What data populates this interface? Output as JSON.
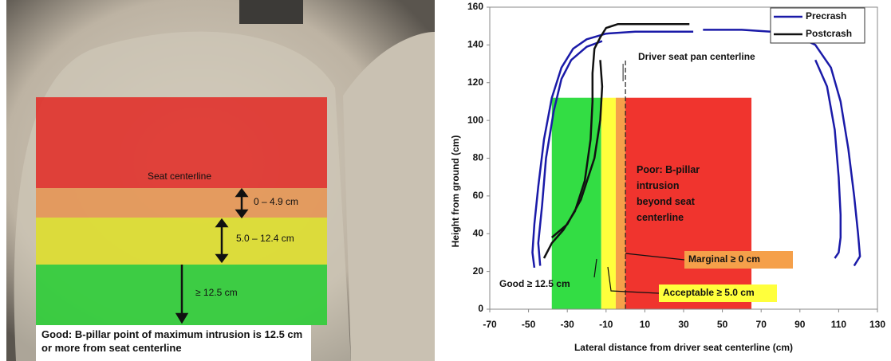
{
  "photo": {
    "labels": [
      "Seat centerline",
      "0 – 4.9 cm",
      "5.0 – 12.4 cm",
      "≥ 12.5 cm"
    ],
    "caption": "Good: B-pillar point of maximum intrusion is 12.5 cm or more from seat centerline"
  },
  "chart_data": {
    "type": "line",
    "x_label": "Lateral distance from driver seat centerline (cm)",
    "y_label": "Height from ground (cm)",
    "xlim": [
      -70,
      130
    ],
    "xticks": [
      -70,
      -50,
      -30,
      -10,
      10,
      30,
      50,
      70,
      90,
      110,
      130
    ],
    "ylim": [
      0,
      160
    ],
    "yticks": [
      0,
      20,
      40,
      60,
      80,
      100,
      120,
      140,
      160
    ],
    "legend": "top-right",
    "zones": [
      {
        "label": "Good ≥ 12.5 cm",
        "color": "#33dd44",
        "x": [
          -38,
          -12.5
        ],
        "y": [
          0,
          112
        ]
      },
      {
        "label": "Acceptable ≥ 5.0 cm",
        "color": "#ffff3c",
        "x": [
          -12.5,
          -5
        ],
        "y": [
          0,
          112
        ]
      },
      {
        "label": "Marginal ≥ 0 cm",
        "color": "#f5a04a",
        "x": [
          -5,
          0
        ],
        "y": [
          0,
          112
        ]
      },
      {
        "label": "Poor: B-pillar intrusion beyond seat centerline",
        "color": "#f0342e",
        "x": [
          0,
          65
        ],
        "y": [
          0,
          112
        ]
      }
    ],
    "centerline": {
      "label": "Driver seat pan centerline",
      "x": 0
    },
    "series": [
      {
        "name": "Precrash",
        "color": "#1a1aa8",
        "x": [
          -47,
          -48,
          -47,
          -45,
          -42,
          -38,
          -33,
          -27,
          -20,
          -10,
          5,
          20,
          35,
          null,
          40,
          60,
          75,
          88,
          98,
          106,
          111,
          115,
          118,
          120,
          121,
          118,
          null,
          -44,
          -45,
          -43,
          -41,
          -37,
          -33,
          -28,
          -20,
          -12,
          null,
          98,
          104,
          108,
          110,
          111,
          111,
          110,
          108
        ],
        "values": [
          22,
          30,
          45,
          65,
          90,
          112,
          128,
          138,
          143,
          146,
          147,
          147,
          147,
          null,
          148,
          148,
          147,
          145,
          140,
          128,
          110,
          85,
          60,
          40,
          28,
          23,
          null,
          23,
          35,
          55,
          80,
          105,
          122,
          132,
          139,
          142,
          null,
          132,
          118,
          95,
          70,
          50,
          38,
          30,
          27
        ]
      },
      {
        "name": "Postcrash",
        "color": "#111111",
        "x": [
          -42,
          -38,
          -32,
          -26,
          -21,
          -18,
          -17,
          -17,
          -16,
          -13,
          -10,
          -4,
          10,
          33,
          null,
          -38,
          -30,
          -23,
          -16,
          -13,
          -12,
          -13
        ],
        "values": [
          27,
          35,
          42,
          52,
          68,
          90,
          110,
          125,
          138,
          144,
          149,
          151,
          151,
          151,
          null,
          38,
          45,
          58,
          80,
          100,
          118,
          132
        ]
      }
    ]
  }
}
